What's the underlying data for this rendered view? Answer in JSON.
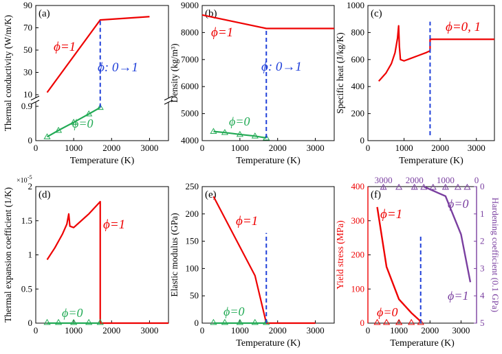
{
  "colors": {
    "red": "#ee0000",
    "green": "#22aa55",
    "blue": "#1f3fd9",
    "purple": "#7a3fa0",
    "axis": "#000000"
  },
  "chart_data": [
    {
      "id": "a",
      "panel_label": "(a)",
      "type": "line",
      "xlabel": "Temperature (K)",
      "ylabel": "Thermal conductivity (W/m/K)",
      "xlim": [
        0,
        3500
      ],
      "x_ticks": [
        0,
        1000,
        2000,
        3000
      ],
      "y_axis_broken": true,
      "y_ticks_upper": [
        "10",
        "30",
        "50",
        "70",
        "90"
      ],
      "y_ticks_lower": [
        "0",
        "0.9"
      ],
      "annotations": [
        {
          "text": "ϕ=1",
          "color": "red"
        },
        {
          "text": "ϕ: 0→1",
          "color": "blue"
        },
        {
          "text": "ϕ=0",
          "color": "green"
        }
      ],
      "series": [
        {
          "segment": "upper",
          "color": "red",
          "x": [
            300,
            1700,
            3000
          ],
          "y": [
            12,
            77,
            80
          ]
        },
        {
          "segment": "lower",
          "color": "green",
          "marker": "triangle",
          "x": [
            300,
            600,
            1000,
            1400,
            1700
          ],
          "y": [
            0.1,
            0.27,
            0.48,
            0.7,
            0.87
          ]
        }
      ],
      "vlines": [
        {
          "x": 1700,
          "color": "blue",
          "from_y": 0.87,
          "to_y": 77
        }
      ]
    },
    {
      "id": "b",
      "panel_label": "(b)",
      "type": "line",
      "xlabel": "Temperature (K)",
      "ylabel": "Density (kg/m³)",
      "xlim": [
        0,
        3500
      ],
      "ylim": [
        4000,
        9000
      ],
      "x_ticks": [
        0,
        1000,
        2000,
        3000
      ],
      "y_ticks": [
        4000,
        5000,
        6000,
        7000,
        8000,
        9000
      ],
      "annotations": [
        {
          "text": "ϕ=1",
          "color": "red"
        },
        {
          "text": "ϕ: 0→1",
          "color": "blue"
        },
        {
          "text": "ϕ=0",
          "color": "green"
        }
      ],
      "series": [
        {
          "color": "red",
          "x": [
            0,
            1700,
            3500
          ],
          "y": [
            8650,
            8150,
            8150
          ]
        },
        {
          "color": "green",
          "marker": "triangle",
          "x": [
            300,
            600,
            1000,
            1400,
            1700
          ],
          "y": [
            4340,
            4300,
            4230,
            4170,
            4100
          ]
        }
      ],
      "vlines": [
        {
          "x": 1700,
          "color": "blue",
          "from_y": 4100,
          "to_y": 8150
        }
      ]
    },
    {
      "id": "c",
      "panel_label": "(c)",
      "type": "line",
      "xlabel": "Temperature (K)",
      "ylabel": "Specific heat (J/kg/K)",
      "xlim": [
        0,
        3500
      ],
      "ylim": [
        0,
        1000
      ],
      "x_ticks": [
        0,
        1000,
        2000,
        3000
      ],
      "y_ticks": [
        0,
        200,
        400,
        600,
        800,
        1000
      ],
      "annotations": [
        {
          "text": "ϕ=0, 1",
          "color": "red"
        }
      ],
      "series": [
        {
          "color": "red",
          "x": [
            300,
            500,
            650,
            750,
            820,
            850,
            870,
            900,
            1000,
            1200,
            1400,
            1600,
            1720,
            1720,
            3500
          ],
          "y": [
            440,
            500,
            570,
            650,
            760,
            850,
            700,
            600,
            590,
            610,
            630,
            650,
            665,
            750,
            750
          ]
        }
      ],
      "vlines": [
        {
          "x": 1720,
          "color": "blue",
          "from_y": 40,
          "to_y": 880
        }
      ]
    },
    {
      "id": "d",
      "panel_label": "(d)",
      "type": "line",
      "xlabel": "",
      "ylabel": "Thermal expansion coefficient (1/K)",
      "y_multiplier": "×10",
      "y_multiplier_exp": "-5",
      "xlim": [
        0,
        3500
      ],
      "ylim": [
        0,
        2
      ],
      "x_ticks": [
        0,
        1000,
        2000,
        3000
      ],
      "y_ticks": [
        0,
        0.5,
        1,
        1.5,
        2
      ],
      "annotations": [
        {
          "text": "ϕ=1",
          "color": "red"
        },
        {
          "text": "ϕ=0",
          "color": "green"
        }
      ],
      "series": [
        {
          "color": "red",
          "x": [
            300,
            500,
            700,
            820,
            870,
            900,
            1000,
            1200,
            1400,
            1600,
            1700,
            1700,
            3500
          ],
          "y": [
            0.93,
            1.1,
            1.3,
            1.45,
            1.6,
            1.42,
            1.4,
            1.5,
            1.6,
            1.72,
            1.78,
            0,
            0
          ]
        },
        {
          "color": "green",
          "marker": "triangle",
          "x": [
            300,
            600,
            1000,
            1400,
            1700
          ],
          "y": [
            0,
            0,
            0,
            0,
            0
          ]
        }
      ]
    },
    {
      "id": "e",
      "panel_label": "(e)",
      "type": "line",
      "xlabel": "Temperature (K)",
      "ylabel": "Elastic modulus (GPa)",
      "xlim": [
        0,
        3500
      ],
      "ylim": [
        0,
        250
      ],
      "x_ticks": [
        0,
        1000,
        2000,
        3000
      ],
      "y_ticks": [
        0,
        50,
        100,
        150,
        200,
        250
      ],
      "annotations": [
        {
          "text": "ϕ=1",
          "color": "red"
        },
        {
          "text": "ϕ=0",
          "color": "green"
        }
      ],
      "series": [
        {
          "color": "red",
          "x": [
            300,
            1400,
            1700,
            3000
          ],
          "y": [
            232,
            87,
            0,
            0
          ]
        },
        {
          "color": "green",
          "marker": "triangle",
          "x": [
            300,
            600,
            1000,
            1400,
            1700
          ],
          "y": [
            0,
            0,
            0,
            0,
            0
          ]
        }
      ],
      "vlines": [
        {
          "x": 1700,
          "color": "blue",
          "from_y": 0,
          "to_y": 165
        }
      ]
    },
    {
      "id": "f",
      "panel_label": "(f)",
      "type": "line",
      "xlabel": "Temperature (K)",
      "ylabel": "Yield stress (MPa)",
      "ylabel_right": "Hardening coefficient (0.1 GPa)",
      "xlim": [
        0,
        3500
      ],
      "ylim": [
        0,
        400
      ],
      "x_ticks": [
        0,
        1000,
        2000,
        3000
      ],
      "y_ticks": [
        0,
        100,
        200,
        300,
        400
      ],
      "top_x_ticks": [
        3000,
        2000,
        1000,
        0
      ],
      "right_y_ticks": [
        0,
        1,
        2,
        3,
        4,
        5
      ],
      "annotations": [
        {
          "text": "ϕ=1",
          "color": "red"
        },
        {
          "text": "ϕ=0",
          "color": "red"
        },
        {
          "text": "ϕ=0",
          "color": "purple"
        },
        {
          "text": "ϕ=1",
          "color": "purple"
        }
      ],
      "series": [
        {
          "color": "red",
          "x": [
            300,
            600,
            1000,
            1400,
            1700
          ],
          "y": [
            340,
            165,
            70,
            30,
            5
          ]
        },
        {
          "color": "red",
          "marker": "triangle",
          "x": [
            300,
            600,
            1000,
            1400,
            1700
          ],
          "y": [
            0,
            0,
            0,
            0,
            0
          ]
        },
        {
          "color": "purple",
          "axis": "top-right",
          "x_top": [
            1700,
            1000,
            500,
            200
          ],
          "y_right": [
            0,
            0.35,
            1.75,
            3.5
          ]
        },
        {
          "color": "purple",
          "axis": "top-right",
          "marker": "triangle",
          "x_top": [
            3000,
            2500,
            2000,
            1700,
            1400,
            1000,
            600,
            300
          ],
          "y_right": [
            0,
            0,
            0,
            0,
            0,
            0,
            0,
            0
          ]
        }
      ],
      "vlines": [
        {
          "x": 1700,
          "color": "blue",
          "from_y": 0,
          "to_y": 255
        }
      ]
    }
  ]
}
